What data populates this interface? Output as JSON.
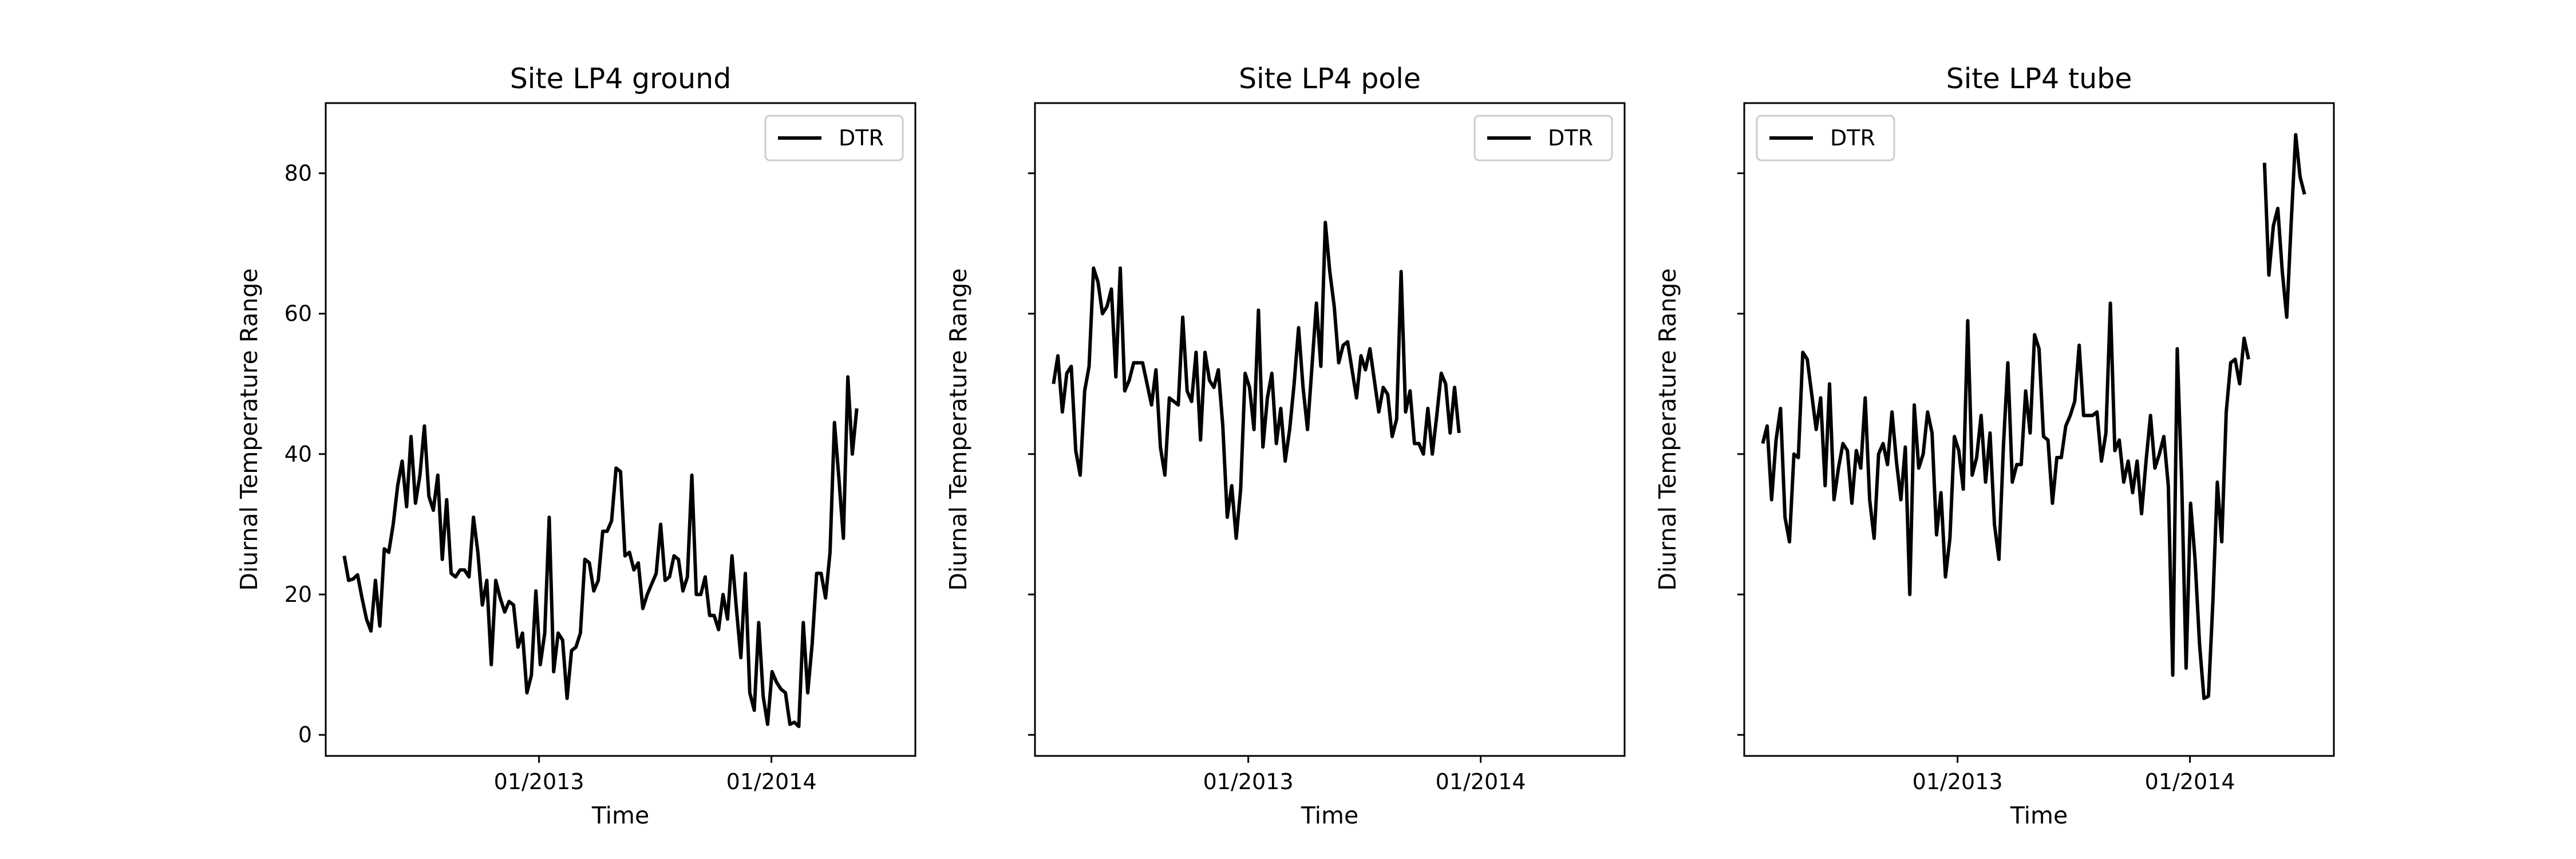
{
  "chart_data": [
    {
      "type": "line",
      "title": "Site LP4 ground",
      "xlabel": "Time",
      "ylabel": "Diurnal Temperature Range",
      "xlim": [
        "2012-02-01",
        "2014-08-15"
      ],
      "ylim": [
        -3,
        90
      ],
      "x_ticks": [
        "2013-01-01",
        "2014-01-01"
      ],
      "x_tick_labels": [
        "01/2013",
        "01/2014"
      ],
      "y_ticks": [
        0,
        20,
        40,
        60,
        80
      ],
      "y_tick_labels_visible": true,
      "legend": {
        "position": "top-right",
        "entries": [
          "DTR"
        ]
      },
      "grid": false,
      "series": [
        {
          "name": "DTR",
          "color": "#000000",
          "segments": [
            {
              "start": "2012-03-01",
              "step_days": 7,
              "values": [
                25.5,
                22,
                22.2,
                22.8,
                19.5,
                16.5,
                14.8,
                22,
                15.5,
                26.5,
                26,
                30,
                35.5,
                39,
                32.5,
                42.5,
                33,
                37,
                44,
                34,
                32,
                37,
                25,
                33.5,
                23,
                22.5,
                23.5,
                23.5,
                22.5,
                31,
                26,
                18.5,
                22,
                10,
                22,
                19.5,
                17.5,
                19,
                18.5,
                12.5,
                14.5,
                6,
                8.5,
                20.5,
                10,
                14.5,
                31,
                9,
                14.5,
                13.5,
                5.2,
                12,
                12.5,
                14.5,
                25,
                24.5,
                20.5,
                22,
                29,
                29,
                30.5,
                38,
                37.5,
                25.5,
                26,
                23.5,
                24.5,
                18,
                20,
                21.5,
                23,
                30,
                22,
                22.5,
                25.5,
                25,
                20.5,
                22.5,
                37,
                20,
                20,
                22.5,
                17,
                17,
                15,
                20,
                16.5,
                25.5,
                18,
                11,
                23,
                6,
                3.5,
                16,
                5.5,
                1.5,
                9,
                7.5,
                6.5,
                6,
                1.5,
                1.8,
                1.2,
                16,
                6,
                13,
                23,
                23,
                19.5,
                26,
                44.5,
                36.5,
                28,
                51,
                40,
                46.5
              ]
            }
          ]
        }
      ]
    },
    {
      "type": "line",
      "title": "Site LP4 pole",
      "xlabel": "Time",
      "ylabel": "Diurnal Temperature Range",
      "xlim": [
        "2012-02-01",
        "2014-08-15"
      ],
      "ylim": [
        -3,
        90
      ],
      "x_ticks": [
        "2013-01-01",
        "2014-01-01"
      ],
      "x_tick_labels": [
        "01/2013",
        "01/2014"
      ],
      "y_ticks": [
        0,
        20,
        40,
        60,
        80
      ],
      "y_tick_labels_visible": false,
      "legend": {
        "position": "top-right",
        "entries": [
          "DTR"
        ]
      },
      "grid": false,
      "series": [
        {
          "name": "DTR",
          "color": "#000000",
          "segments": [
            {
              "start": "2012-03-01",
              "step_days": 7,
              "values": [
                50,
                54,
                46,
                51.5,
                52.5,
                40.5,
                37,
                49,
                52.5,
                66.5,
                64.5,
                60,
                61,
                63.5,
                51,
                66.5,
                49,
                50.5,
                53,
                53,
                53,
                50,
                47,
                52,
                41,
                37,
                48,
                47.5,
                47,
                59.5,
                49,
                47.5,
                54.5,
                42,
                54.5,
                50.5,
                49.5,
                52,
                44,
                31,
                35.5,
                28,
                35,
                51.5,
                49.5,
                43.5,
                60.5,
                41,
                48,
                51.5,
                41.5,
                46.5,
                39,
                43.5,
                50,
                58,
                49.5,
                43.5,
                52.5,
                61.5,
                52.5,
                73,
                66,
                61,
                53,
                55.5,
                56,
                52,
                48,
                54,
                52,
                55,
                50.5,
                46,
                49.5,
                48.5,
                42.5,
                45,
                66,
                46,
                49,
                41.5,
                41.5,
                40,
                46.5,
                40,
                45.5,
                51.5,
                50,
                43,
                49.5,
                43
              ]
            }
          ]
        }
      ]
    },
    {
      "type": "line",
      "title": "Site LP4 tube",
      "xlabel": "Time",
      "ylabel": "Diurnal Temperature Range",
      "xlim": [
        "2012-02-01",
        "2014-08-15"
      ],
      "ylim": [
        -3,
        90
      ],
      "x_ticks": [
        "2013-01-01",
        "2014-01-01"
      ],
      "x_tick_labels": [
        "01/2013",
        "01/2014"
      ],
      "y_ticks": [
        0,
        20,
        40,
        60,
        80
      ],
      "y_tick_labels_visible": false,
      "legend": {
        "position": "top-left",
        "entries": [
          "DTR"
        ]
      },
      "grid": false,
      "series": [
        {
          "name": "DTR",
          "color": "#000000",
          "segments": [
            {
              "start": "2012-03-01",
              "step_days": 7,
              "values": [
                41.5,
                44,
                33.5,
                42,
                46.5,
                31,
                27.5,
                40,
                39.5,
                54.5,
                53.5,
                48.5,
                43.5,
                48,
                35.5,
                50,
                33.5,
                38,
                41.5,
                40.5,
                33,
                40.5,
                38,
                48,
                33.5,
                28,
                40,
                41.5,
                38.5,
                46,
                39,
                33.5,
                41,
                20,
                47,
                38,
                40,
                46,
                43,
                28.5,
                34.5,
                22.5,
                28,
                42.5,
                40.5,
                35,
                59,
                37,
                39.5,
                45.5,
                36,
                43,
                30,
                25,
                41,
                53,
                36,
                38.5,
                38.5,
                49,
                43,
                57,
                55,
                42.5,
                42,
                33,
                39.5,
                39.5,
                44,
                45.5,
                47.5,
                55.5,
                45.5,
                45.5,
                45.5,
                46,
                39,
                43,
                61.5,
                40.5,
                42,
                36,
                39,
                34.5,
                39,
                31.5,
                39,
                45.5,
                38,
                40,
                42.5,
                35.5,
                8.5,
                55,
                36,
                9.5,
                33,
                25,
                13,
                5.2,
                5.5,
                19,
                36,
                27.5,
                46,
                53,
                53.5,
                50,
                56.5,
                53.5
              ]
            },
            {
              "start": "2014-04-28",
              "step_days": 7,
              "values": [
                81.5,
                65.5,
                72.5,
                75,
                66,
                59.5,
                73,
                85.5,
                79.5,
                77
              ]
            }
          ]
        }
      ]
    }
  ]
}
